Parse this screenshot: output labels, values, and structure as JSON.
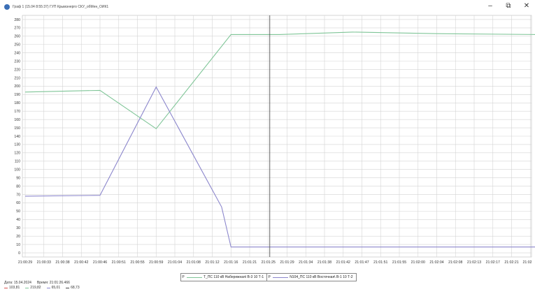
{
  "window": {
    "title": "Граф 1 (15.04 8:55:37) ГУП Крымэнерго СКУ_обМен_ОИК1",
    "minimize_label": "–",
    "restore_label": "⧉",
    "close_label": "✕"
  },
  "chart_data": {
    "type": "line",
    "title": "",
    "xlabel": "",
    "ylabel": "",
    "ylim": [
      -5,
      285
    ],
    "y_ticks": [
      0,
      10,
      20,
      30,
      40,
      50,
      60,
      70,
      80,
      90,
      100,
      110,
      120,
      130,
      140,
      150,
      160,
      170,
      180,
      190,
      200,
      210,
      220,
      230,
      240,
      250,
      260,
      270,
      280
    ],
    "x_tick_labels": [
      "21:00:29",
      "21:00:33",
      "21:00:38",
      "21:00:42",
      "21:00:46",
      "21:00:51",
      "21:00:55",
      "21:00:59",
      "21:01:04",
      "21:01:08",
      "21:01:12",
      "21:01:16",
      "21:01:21",
      "21:01:25",
      "21:01:29",
      "21:01:34",
      "21:01:38",
      "21:01:42",
      "21:01:47",
      "21:01:51",
      "21:01:55",
      "21:02:00",
      "21:02:04",
      "21:02:08",
      "21:02:13",
      "21:02:17",
      "21:02:21",
      "21:02"
    ],
    "cursor_tick": 13,
    "grid": true,
    "legend_position": "bottom-center",
    "series": [
      {
        "name": "Т_ПС 110 кВ Набережная\\ В-3 10 Т-1",
        "color": "#7fc597",
        "x": [
          0,
          4,
          7,
          11,
          13.6,
          17.5,
          22,
          27.3
        ],
        "values": [
          193,
          195,
          149,
          262,
          262,
          265,
          263,
          262
        ]
      },
      {
        "name": "N104_ПС 110 кВ Восточная\\ В-1 10 Т-2",
        "color": "#8b86cc",
        "x": [
          0,
          4,
          7,
          10.5,
          11,
          27.3
        ],
        "values": [
          68,
          69,
          199,
          55,
          7,
          7
        ]
      }
    ]
  },
  "legend": {
    "marker": "P",
    "series1_label": "Т_ПС 110 кВ Набережная\\ В-3 10 Т-1",
    "series2_label": "N104_ПС 110 кВ Восточная\\ В-1 10 Т-2"
  },
  "status": {
    "date_label": "Дата: 15.04.2024",
    "time_label": "Время: 21:01:26.466",
    "values": [
      "103,81",
      "219,82",
      "65,01",
      "68,73"
    ],
    "value_colors": [
      "#d9534f",
      "#7fc597",
      "#8b86cc",
      "#444444"
    ]
  },
  "colors": {
    "grid": "#d4d4d4",
    "cursor": "#555555",
    "axis_text": "#333333"
  }
}
